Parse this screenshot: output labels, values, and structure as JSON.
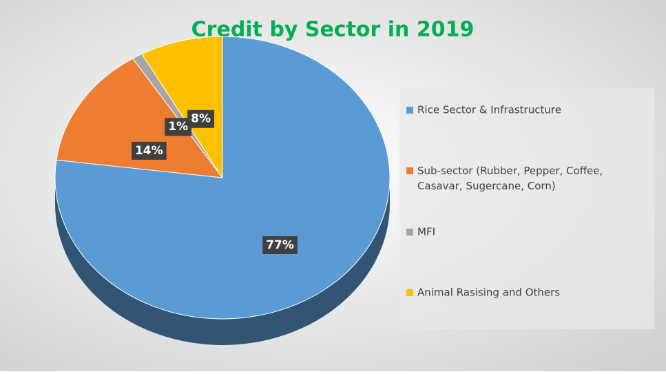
{
  "chart_data": {
    "type": "pie",
    "title": "Credit by Sector in 2019",
    "categories": [
      "Rice Sector & Infrastructure",
      "Sub-sector (Rubber, Pepper, Coffee, Casavar, Sugercane, Corn)",
      "MFI",
      "Animal Rasising and Others"
    ],
    "values": [
      77,
      14,
      1,
      8
    ],
    "value_labels": [
      "77%",
      "14%",
      "1%",
      "8%"
    ],
    "colors": [
      "#5b9bd5",
      "#ed7d31",
      "#a5a5a5",
      "#ffc000"
    ],
    "legend": "right"
  }
}
